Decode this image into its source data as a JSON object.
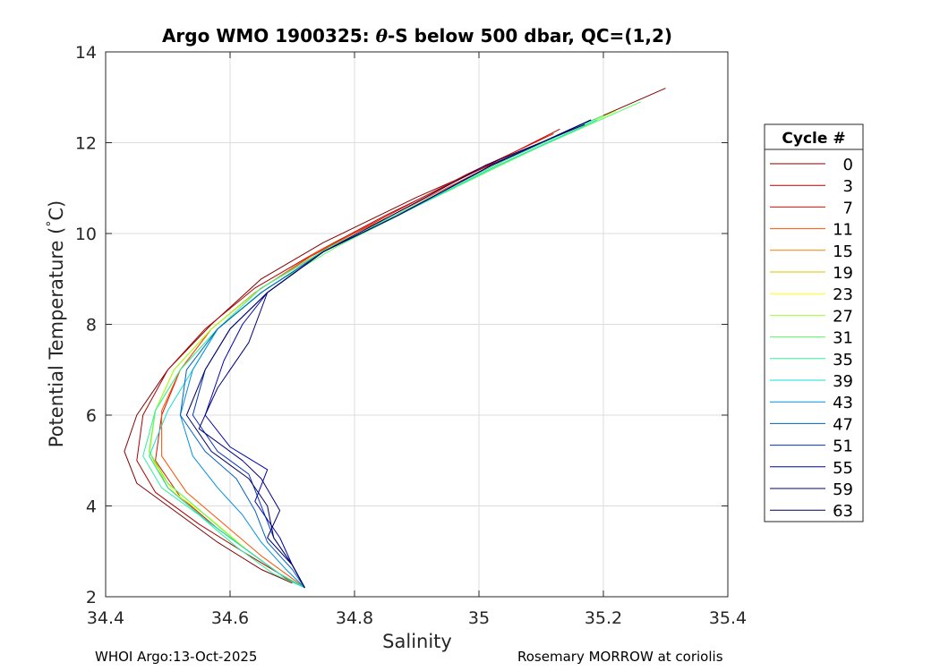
{
  "chart_data": {
    "type": "line",
    "title": "Argo WMO 1900325: θ-S below 500 dbar,  QC=(1,2)",
    "title_parts": {
      "prefix": "Argo WMO 1900325: ",
      "theta": "θ",
      "suffix": "-S below 500 dbar,  QC=(1,2)"
    },
    "xlabel": "Salinity",
    "ylabel": "Potential Temperature (°C)",
    "ylabel_parts": {
      "text": "Potential Temperature (",
      "degree": "°",
      "unit": "C)"
    },
    "xlim": [
      34.4,
      35.4
    ],
    "ylim": [
      2,
      14
    ],
    "xticks": [
      34.4,
      34.6,
      34.8,
      35,
      35.2,
      35.4
    ],
    "xtick_labels": [
      "34.4",
      "34.6",
      "34.8",
      "35",
      "35.2",
      "35.4"
    ],
    "yticks": [
      2,
      4,
      6,
      8,
      10,
      12,
      14
    ],
    "ytick_labels": [
      "2",
      "4",
      "6",
      "8",
      "10",
      "12",
      "14"
    ],
    "grid": true,
    "legend_title": "Cycle #",
    "legend_position": "right-outside",
    "legend": [
      {
        "label": "0",
        "color": "#800000"
      },
      {
        "label": "3",
        "color": "#b00000"
      },
      {
        "label": "7",
        "color": "#e01000"
      },
      {
        "label": "11",
        "color": "#ff5000"
      },
      {
        "label": "15",
        "color": "#f08000"
      },
      {
        "label": "19",
        "color": "#d8c000"
      },
      {
        "label": "23",
        "color": "#ffff00"
      },
      {
        "label": "27",
        "color": "#a0ff30"
      },
      {
        "label": "31",
        "color": "#50ff60"
      },
      {
        "label": "35",
        "color": "#30f0a0"
      },
      {
        "label": "39",
        "color": "#10e0d0"
      },
      {
        "label": "43",
        "color": "#0090e0"
      },
      {
        "label": "47",
        "color": "#0060c0"
      },
      {
        "label": "51",
        "color": "#0030c0"
      },
      {
        "label": "55",
        "color": "#0000b0"
      },
      {
        "label": "59",
        "color": "#00007c"
      },
      {
        "label": "63",
        "color": "#000060"
      }
    ],
    "series": [
      {
        "name": "0",
        "color": "#800000",
        "salinity": [
          35.3,
          35.1,
          34.9,
          34.75,
          34.65,
          34.57,
          34.5,
          34.45,
          34.43,
          34.45,
          34.52,
          34.58,
          34.65,
          34.7
        ],
        "temperature": [
          13.2,
          12.0,
          10.8,
          9.8,
          9.0,
          8.0,
          7.0,
          6.0,
          5.2,
          4.5,
          3.8,
          3.2,
          2.6,
          2.3
        ]
      },
      {
        "name": "3",
        "color": "#b00000",
        "salinity": [
          35.13,
          35.0,
          34.85,
          34.74,
          34.64,
          34.56,
          34.5,
          34.46,
          34.45,
          34.48,
          34.55,
          34.62,
          34.68,
          34.72
        ],
        "temperature": [
          12.3,
          11.4,
          10.4,
          9.6,
          8.8,
          7.9,
          7.0,
          6.0,
          5.0,
          4.3,
          3.6,
          3.0,
          2.5,
          2.2
        ]
      },
      {
        "name": "7",
        "color": "#e01000",
        "salinity": [
          35.12,
          34.98,
          34.84,
          34.73,
          34.64,
          34.57,
          34.52,
          34.49,
          34.48,
          34.52,
          34.58,
          34.64,
          34.69,
          34.72
        ],
        "temperature": [
          12.2,
          11.3,
          10.3,
          9.5,
          8.7,
          7.9,
          7.0,
          6.0,
          5.0,
          4.2,
          3.5,
          2.9,
          2.4,
          2.2
        ]
      },
      {
        "name": "11",
        "color": "#ff5000",
        "salinity": [
          35.18,
          35.02,
          34.86,
          34.74,
          34.64,
          34.57,
          34.52,
          34.49,
          34.49,
          34.53,
          34.59,
          34.65,
          34.7,
          34.72
        ],
        "temperature": [
          12.5,
          11.5,
          10.4,
          9.6,
          8.7,
          7.9,
          7.0,
          6.1,
          5.1,
          4.3,
          3.6,
          2.9,
          2.4,
          2.2
        ]
      },
      {
        "name": "15",
        "color": "#f08000",
        "salinity": [
          35.19,
          35.03,
          34.87,
          34.75,
          34.65,
          34.57,
          34.51,
          34.48,
          34.47,
          34.5,
          34.56,
          34.63,
          34.68,
          34.72
        ],
        "temperature": [
          12.5,
          11.5,
          10.4,
          9.6,
          8.8,
          7.9,
          7.0,
          6.1,
          5.2,
          4.4,
          3.7,
          3.0,
          2.5,
          2.2
        ]
      },
      {
        "name": "19",
        "color": "#d8c000",
        "salinity": [
          35.2,
          35.04,
          34.88,
          34.76,
          34.65,
          34.57,
          34.51,
          34.48,
          34.47,
          34.5,
          34.56,
          34.62,
          34.68,
          34.72
        ],
        "temperature": [
          12.6,
          11.6,
          10.5,
          9.7,
          8.8,
          7.9,
          7.0,
          6.1,
          5.2,
          4.4,
          3.7,
          3.1,
          2.5,
          2.2
        ]
      },
      {
        "name": "23",
        "color": "#ffff00",
        "salinity": [
          35.2,
          35.04,
          34.88,
          34.76,
          34.65,
          34.57,
          34.51,
          34.48,
          34.47,
          34.51,
          34.57,
          34.63,
          34.68,
          34.72
        ],
        "temperature": [
          12.6,
          11.6,
          10.5,
          9.7,
          8.8,
          7.9,
          7.0,
          6.1,
          5.1,
          4.3,
          3.7,
          3.0,
          2.5,
          2.2
        ]
      },
      {
        "name": "27",
        "color": "#a0ff30",
        "salinity": [
          35.22,
          35.05,
          34.88,
          34.76,
          34.65,
          34.57,
          34.51,
          34.48,
          34.47,
          34.5,
          34.56,
          34.62,
          34.68,
          34.72
        ],
        "temperature": [
          12.7,
          11.6,
          10.5,
          9.7,
          8.8,
          7.9,
          7.0,
          6.1,
          5.2,
          4.5,
          3.8,
          3.1,
          2.5,
          2.2
        ]
      },
      {
        "name": "31",
        "color": "#50ff60",
        "salinity": [
          35.26,
          35.08,
          34.9,
          34.77,
          34.66,
          34.58,
          34.52,
          34.48,
          34.47,
          34.5,
          34.56,
          34.62,
          34.68,
          34.72
        ],
        "temperature": [
          12.9,
          11.8,
          10.6,
          9.7,
          8.8,
          7.9,
          7.0,
          6.1,
          5.2,
          4.5,
          3.8,
          3.1,
          2.5,
          2.2
        ]
      },
      {
        "name": "35",
        "color": "#30f0a0",
        "salinity": [
          35.2,
          35.04,
          34.88,
          34.76,
          34.65,
          34.58,
          34.52,
          34.48,
          34.46,
          34.49,
          34.55,
          34.61,
          34.67,
          34.72
        ],
        "temperature": [
          12.6,
          11.6,
          10.5,
          9.7,
          8.8,
          7.9,
          7.0,
          6.1,
          5.1,
          4.4,
          3.8,
          3.1,
          2.5,
          2.2
        ]
      },
      {
        "name": "39",
        "color": "#10e0d0",
        "salinity": [
          35.19,
          35.03,
          34.87,
          34.75,
          34.65,
          34.58,
          34.54,
          34.5,
          34.47,
          34.5,
          34.56,
          34.62,
          34.68,
          34.72
        ],
        "temperature": [
          12.5,
          11.5,
          10.4,
          9.6,
          8.7,
          7.9,
          7.0,
          6.1,
          5.1,
          4.4,
          3.7,
          3.1,
          2.5,
          2.2
        ]
      },
      {
        "name": "43",
        "color": "#0090e0",
        "salinity": [
          35.18,
          35.02,
          34.87,
          34.75,
          34.65,
          34.58,
          34.54,
          34.52,
          34.54,
          34.58,
          34.62,
          34.65,
          34.69,
          34.72
        ],
        "temperature": [
          12.5,
          11.5,
          10.4,
          9.6,
          8.7,
          7.9,
          7.0,
          6.0,
          5.1,
          4.4,
          3.8,
          3.2,
          2.6,
          2.2
        ]
      },
      {
        "name": "47",
        "color": "#0060c0",
        "salinity": [
          35.18,
          35.02,
          34.87,
          34.75,
          34.65,
          34.58,
          34.53,
          34.52,
          34.56,
          34.61,
          34.64,
          34.66,
          34.7,
          34.72
        ],
        "temperature": [
          12.5,
          11.5,
          10.4,
          9.6,
          8.7,
          7.9,
          7.0,
          6.0,
          5.2,
          4.6,
          3.9,
          3.2,
          2.6,
          2.2
        ]
      },
      {
        "name": "51",
        "color": "#0030c0",
        "salinity": [
          35.18,
          35.02,
          34.87,
          34.75,
          34.66,
          34.6,
          34.56,
          34.54,
          34.58,
          34.63,
          34.65,
          34.67,
          34.7,
          34.72
        ],
        "temperature": [
          12.5,
          11.5,
          10.4,
          9.6,
          8.7,
          7.9,
          7.0,
          6.0,
          5.2,
          4.7,
          4.0,
          3.3,
          2.7,
          2.2
        ]
      },
      {
        "name": "55",
        "color": "#0000b0",
        "salinity": [
          35.18,
          35.02,
          34.87,
          34.75,
          34.66,
          34.62,
          34.59,
          34.56,
          34.6,
          34.66,
          34.64,
          34.68,
          34.7,
          34.72
        ],
        "temperature": [
          12.5,
          11.5,
          10.4,
          9.6,
          8.7,
          8.0,
          7.2,
          6.0,
          5.3,
          4.8,
          4.1,
          3.3,
          2.7,
          2.2
        ]
      },
      {
        "name": "59",
        "color": "#00007c",
        "salinity": [
          35.18,
          35.02,
          34.87,
          34.75,
          34.66,
          34.63,
          34.58,
          34.55,
          34.62,
          34.65,
          34.68,
          34.66,
          34.7,
          34.72
        ],
        "temperature": [
          12.5,
          11.5,
          10.4,
          9.6,
          8.7,
          7.6,
          6.6,
          5.7,
          5.0,
          4.6,
          3.9,
          3.3,
          2.7,
          2.2
        ]
      },
      {
        "name": "63",
        "color": "#000060",
        "salinity": [
          35.17,
          35.01,
          34.86,
          34.75,
          34.66,
          34.6,
          34.56,
          34.53,
          34.57,
          34.63,
          34.66,
          34.67,
          34.7,
          34.72
        ],
        "temperature": [
          12.4,
          11.5,
          10.4,
          9.6,
          8.7,
          7.9,
          7.0,
          6.0,
          5.2,
          4.6,
          4.0,
          3.3,
          2.7,
          2.2
        ]
      }
    ]
  },
  "footer": {
    "left": "WHOI Argo:13-Oct-2025",
    "right": "Rosemary MORROW at coriolis"
  }
}
